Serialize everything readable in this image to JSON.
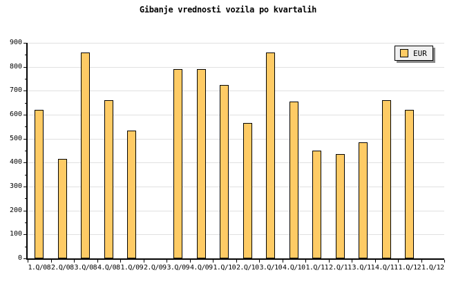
{
  "chart_data": {
    "type": "bar",
    "title": "Gibanje vrednosti vozila po kvartalih",
    "categories": [
      "1.Q/08",
      "2.Q/08",
      "3.Q/08",
      "4.Q/08",
      "1.Q/09",
      "2.Q/09",
      "3.Q/09",
      "4.Q/09",
      "1.Q/10",
      "2.Q/10",
      "3.Q/10",
      "4.Q/10",
      "1.Q/11",
      "2.Q/11",
      "3.Q/11",
      "4.Q/11",
      "1.Q/12",
      "1.Q/12"
    ],
    "series": [
      {
        "name": "EUR",
        "values": [
          620,
          415,
          860,
          660,
          535,
          null,
          790,
          790,
          725,
          565,
          860,
          655,
          450,
          435,
          485,
          660,
          620,
          null
        ]
      }
    ],
    "xlabel": "",
    "ylabel": "",
    "ylim": [
      0,
      900
    ],
    "yticks": [
      0,
      100,
      200,
      300,
      400,
      500,
      600,
      700,
      800,
      900
    ],
    "minor_tick_step": 50,
    "grid": "horizontal-major",
    "legend_position": "top-right",
    "colors": {
      "bar_fill": "#FECB65",
      "bar_border": "#000000",
      "gridline": "#E0E0E0",
      "axis": "#000000",
      "legend_bg": "#F0F0F0",
      "legend_shadow": "#888888",
      "background": "#FFFFFF"
    }
  }
}
